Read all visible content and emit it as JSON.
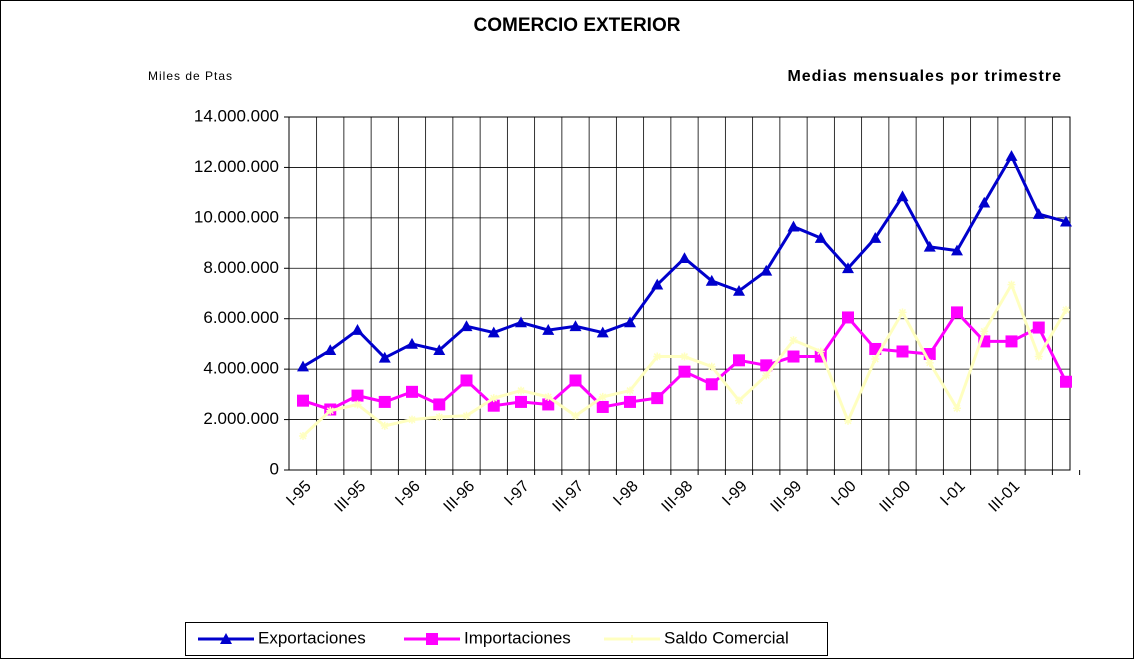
{
  "chart_data": {
    "type": "line",
    "title": "COMERCIO EXTERIOR",
    "subtitle": "Medias mensuales por trimestre",
    "y_label": "Miles de Ptas",
    "categories": [
      "I-95",
      null,
      "III-95",
      null,
      "I-96",
      null,
      "III-96",
      null,
      "I-97",
      null,
      "III-97",
      null,
      "I-98",
      null,
      "III-98",
      null,
      "I-99",
      null,
      "III-99",
      null,
      "I-00",
      null,
      "III-00",
      null,
      "I-01",
      null,
      "III-01",
      null,
      null
    ],
    "series": [
      {
        "name": "Exportaciones",
        "color": "#0000cc",
        "marker": "triangle",
        "values": [
          4100000,
          4750000,
          5550000,
          4450000,
          5000000,
          4750000,
          5700000,
          5450000,
          5850000,
          5550000,
          5700000,
          5450000,
          5850000,
          7350000,
          8400000,
          7500000,
          7100000,
          7900000,
          9650000,
          9200000,
          8000000,
          9200000,
          10850000,
          8850000,
          8700000,
          10600000,
          12450000,
          10150000,
          9850000
        ]
      },
      {
        "name": "Importaciones",
        "color": "#ff00ff",
        "marker": "square",
        "values": [
          2750000,
          2400000,
          2950000,
          2700000,
          3100000,
          2600000,
          3550000,
          2550000,
          2700000,
          2600000,
          3550000,
          2500000,
          2700000,
          2850000,
          3900000,
          3400000,
          4350000,
          4150000,
          4500000,
          4500000,
          6050000,
          4800000,
          4700000,
          4600000,
          6250000,
          5100000,
          5100000,
          5650000,
          3500000
        ]
      },
      {
        "name": "Saldo Comercial",
        "color": "#ffffc0",
        "marker": "star",
        "values": [
          1350000,
          2350000,
          2600000,
          1750000,
          2000000,
          2100000,
          2150000,
          2850000,
          3150000,
          2900000,
          2150000,
          2900000,
          3150000,
          4500000,
          4500000,
          4100000,
          2750000,
          3750000,
          5150000,
          4700000,
          1950000,
          4400000,
          6250000,
          4250000,
          2450000,
          5500000,
          7350000,
          4500000,
          6350000
        ]
      }
    ],
    "ylim": [
      0,
      14000000
    ],
    "yticks": [
      0,
      {
        "value": 2000000,
        "label": "2.000.000"
      },
      {
        "value": 4000000,
        "label": "4.000.000"
      },
      {
        "value": 6000000,
        "label": "6.000.000"
      },
      {
        "value": 8000000,
        "label": "8.000.000"
      },
      {
        "value": 10000000,
        "label": "10.000.000"
      },
      {
        "value": 12000000,
        "label": "12.000.000"
      },
      {
        "value": 14000000,
        "label": "14.000.000"
      }
    ],
    "grid": true,
    "legend": "bottom"
  }
}
